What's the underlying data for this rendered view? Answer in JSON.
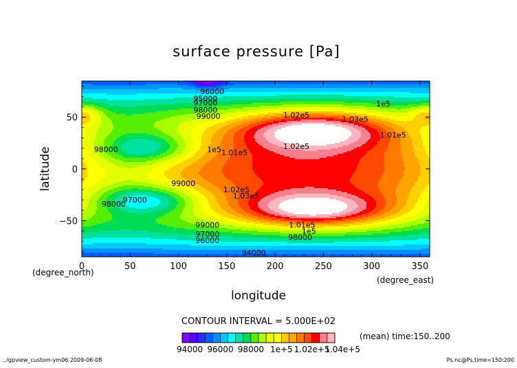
{
  "chart_data": {
    "type": "heatmap",
    "title": "surface pressure [Pa]",
    "xlabel": "longitude",
    "ylabel": "latitude",
    "x_unit": "(degree_east)",
    "y_unit": "(degree_north)",
    "xlim": [
      0,
      360
    ],
    "ylim": [
      -85,
      85
    ],
    "x_ticks": [
      0,
      50,
      100,
      150,
      200,
      250,
      300,
      350
    ],
    "y_ticks": [
      -50,
      0,
      50
    ],
    "contour_interval_text": "CONTOUR INTERVAL = 5.000E+02",
    "mean_text": "(mean) time:150..200",
    "footer_left": "../gpview_custom-ym06  2009-06-08",
    "footer_right": "Ps.nc@Ps,time=150:200",
    "levels": [
      93500,
      94000,
      94500,
      95000,
      95500,
      96000,
      96500,
      97000,
      97500,
      98000,
      98500,
      99000,
      99500,
      100000,
      100500,
      101000,
      101500,
      102000,
      102500,
      103000,
      103500,
      104000,
      104500
    ],
    "colorbar_labels": [
      "94000",
      "96000",
      "98000",
      "1e+5",
      "1.02e+5",
      "1.04e+5"
    ],
    "contour_labels": [
      {
        "text": "96000",
        "lon": 135,
        "lat": 75
      },
      {
        "text": "95000",
        "lon": 128,
        "lat": 68
      },
      {
        "text": "97000",
        "lon": 128,
        "lat": 64
      },
      {
        "text": "98000",
        "lon": 128,
        "lat": 57
      },
      {
        "text": "99000",
        "lon": 131,
        "lat": 51
      },
      {
        "text": "1.02e5",
        "lon": 222,
        "lat": 52
      },
      {
        "text": "1.03e5",
        "lon": 283,
        "lat": 48
      },
      {
        "text": "1e5",
        "lon": 312,
        "lat": 63
      },
      {
        "text": "1.01e5",
        "lon": 322,
        "lat": 33
      },
      {
        "text": "98000",
        "lon": 25,
        "lat": 19
      },
      {
        "text": "1.02e5",
        "lon": 222,
        "lat": 22
      },
      {
        "text": "1e5",
        "lon": 137,
        "lat": 19
      },
      {
        "text": "1.01e5",
        "lon": 158,
        "lat": 16
      },
      {
        "text": "99000",
        "lon": 105,
        "lat": -14
      },
      {
        "text": "1.02e5",
        "lon": 160,
        "lat": -20
      },
      {
        "text": "1.03e5",
        "lon": 170,
        "lat": -26
      },
      {
        "text": "97000",
        "lon": 55,
        "lat": -30
      },
      {
        "text": "98000",
        "lon": 33,
        "lat": -34
      },
      {
        "text": "99000",
        "lon": 130,
        "lat": -54
      },
      {
        "text": "1.01e5",
        "lon": 228,
        "lat": -54
      },
      {
        "text": "1e5",
        "lon": 235,
        "lat": -60
      },
      {
        "text": "98000",
        "lon": 226,
        "lat": -66
      },
      {
        "text": "97000",
        "lon": 130,
        "lat": -63
      },
      {
        "text": "96000",
        "lon": 130,
        "lat": -69
      },
      {
        "text": "94000",
        "lon": 178,
        "lat": -81
      }
    ]
  },
  "colors": {
    "bands": [
      "#ffffff",
      "#7f00ff",
      "#5500ff",
      "#2a2aff",
      "#005fff",
      "#0090ff",
      "#00c8ff",
      "#00ffff",
      "#00e0a0",
      "#00dd55",
      "#55ee00",
      "#aaff00",
      "#e6ff00",
      "#ffff00",
      "#ffd000",
      "#ffa500",
      "#ff7a00",
      "#ff4a00",
      "#ff0000",
      "#ff7f8f",
      "#ffb6c1",
      "#ffffff"
    ]
  }
}
